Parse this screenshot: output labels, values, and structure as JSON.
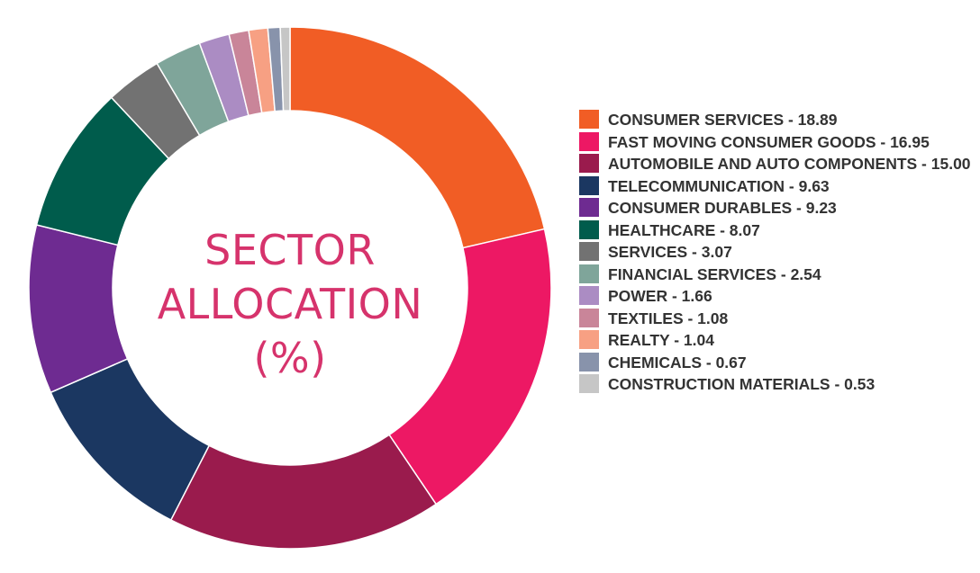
{
  "chart_data": {
    "type": "pie",
    "title": "SECTOR ALLOCATION (%)",
    "title_lines": [
      "SECTOR",
      "ALLOCATION",
      "(%)"
    ],
    "legend_position": "right",
    "slices": [
      {
        "label": "CONSUMER SERVICES - 18.89",
        "value": 18.89,
        "color": "#f15d25"
      },
      {
        "label": "FAST MOVING CONSUMER GOODS - 16.95",
        "value": 16.95,
        "color": "#ed1864"
      },
      {
        "label": "AUTOMOBILE AND AUTO COMPONENTS - 15.00",
        "value": 15.0,
        "color": "#9a1b4d"
      },
      {
        "label": "TELECOMMUNICATION - 9.63",
        "value": 9.63,
        "color": "#1b3761"
      },
      {
        "label": "CONSUMER DURABLES - 9.23",
        "value": 9.23,
        "color": "#6e2b91"
      },
      {
        "label": "HEALTHCARE - 8.07",
        "value": 8.07,
        "color": "#005c4c"
      },
      {
        "label": "SERVICES - 3.07",
        "value": 3.07,
        "color": "#727272"
      },
      {
        "label": "FINANCIAL SERVICES - 2.54",
        "value": 2.54,
        "color": "#7fa59a"
      },
      {
        "label": "POWER - 1.66",
        "value": 1.66,
        "color": "#ab8cc3"
      },
      {
        "label": "TEXTILES - 1.08",
        "value": 1.08,
        "color": "#c98599"
      },
      {
        "label": "REALTY - 1.04",
        "value": 1.04,
        "color": "#f7a083"
      },
      {
        "label": "CHEMICALS - 0.67",
        "value": 0.67,
        "color": "#8893ab"
      },
      {
        "label": "CONSTRUCTION MATERIALS - 0.53",
        "value": 0.53,
        "color": "#c6c6c6"
      }
    ]
  }
}
